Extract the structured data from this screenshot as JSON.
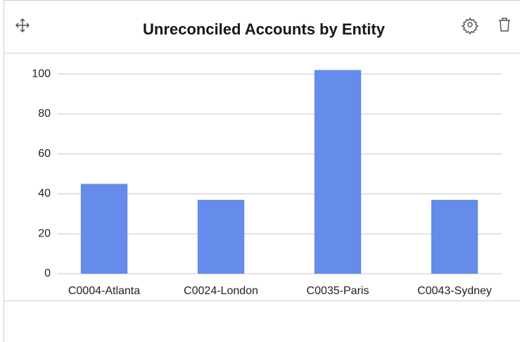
{
  "chart_data": {
    "type": "bar",
    "title": "Unreconciled Accounts by Entity",
    "categories": [
      "C0004-Atlanta",
      "C0024-London",
      "C0035-Paris",
      "C0043-Sydney"
    ],
    "values": [
      45,
      37,
      102,
      37
    ],
    "color": "#658beb",
    "ylim": [
      0,
      105
    ],
    "yticks": [
      0,
      20,
      40,
      60,
      80,
      100
    ],
    "grid": true
  }
}
